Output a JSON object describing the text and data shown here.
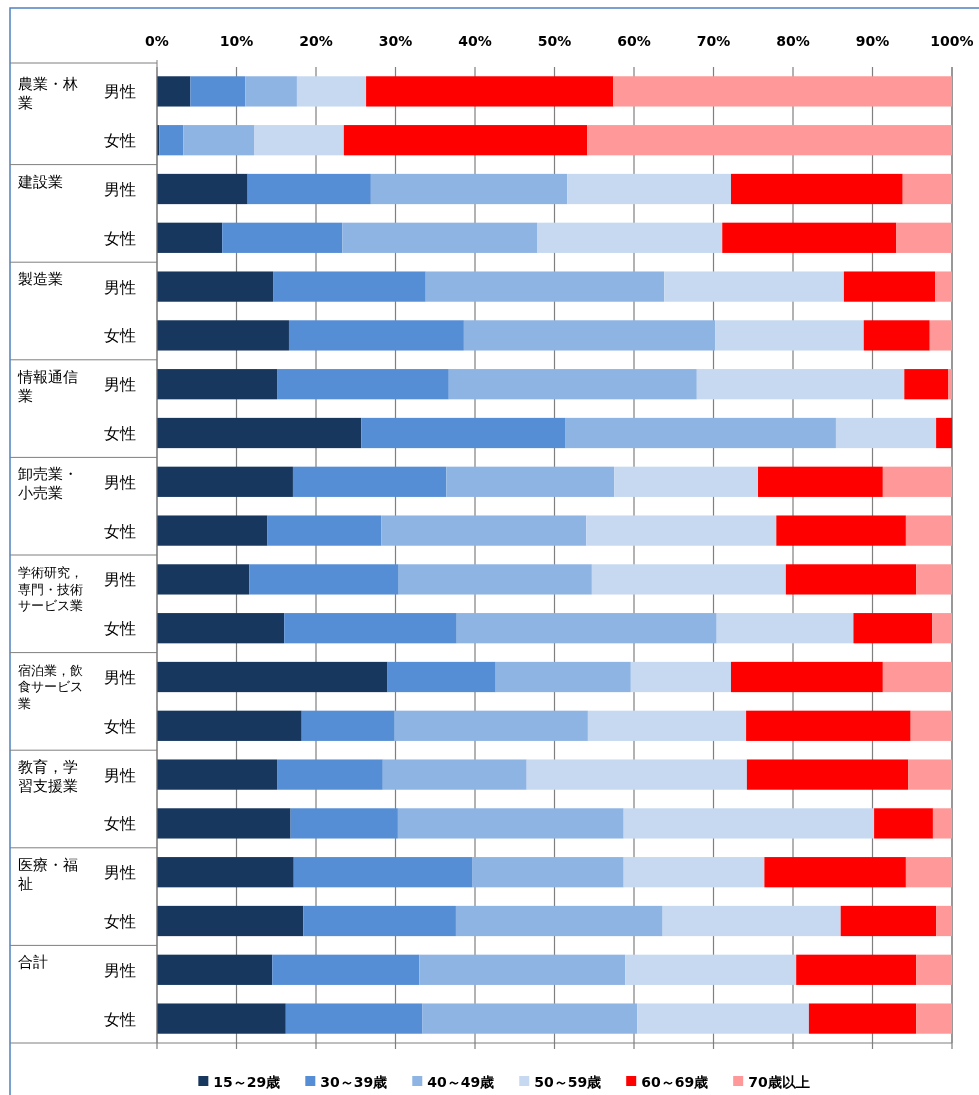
{
  "chart_data": {
    "type": "bar",
    "orientation": "horizontal",
    "stacked": true,
    "grid": "x",
    "legend": "bottom",
    "categories": [
      "男性",
      "女性",
      "男性",
      "女性",
      "男性",
      "女性",
      "男性",
      "女性",
      "男性",
      "女性",
      "男性",
      "女性",
      "男性",
      "女性",
      "男性",
      "女性",
      "男性",
      "女性",
      "男性",
      "女性"
    ],
    "annotations": [
      "農業・林業",
      "建設業",
      "製造業",
      "情報通信業",
      "卸売業・小売業",
      "学術研究，専門・技術サービス業",
      "宿泊業，飲食サービス業",
      "教育，学習支援業",
      "医療・福祉",
      "合計"
    ],
    "xlim": [
      0,
      100
    ],
    "xticks": [
      {
        "value": 0,
        "label": "0%"
      },
      {
        "value": 10,
        "label": "10%"
      },
      {
        "value": 20,
        "label": "20%"
      },
      {
        "value": 30,
        "label": "30%"
      },
      {
        "value": 40,
        "label": "40%"
      },
      {
        "value": 50,
        "label": "50%"
      },
      {
        "value": 60,
        "label": "60%"
      },
      {
        "value": 70,
        "label": "70%"
      },
      {
        "value": 80,
        "label": "80%"
      },
      {
        "value": 90,
        "label": "90%"
      },
      {
        "value": 100,
        "label": "100%"
      }
    ],
    "series": [
      {
        "name": "15～29歳",
        "color": "#17375e",
        "values": [
          4.2,
          0.3,
          11.4,
          8.2,
          14.6,
          16.6,
          15.1,
          25.7,
          17.1,
          13.9,
          11.6,
          16.0,
          29.0,
          18.2,
          15.1,
          16.8,
          17.2,
          18.4,
          14.5,
          16.2
        ]
      },
      {
        "name": "30～39歳",
        "color": "#558ed5",
        "values": [
          6.9,
          3.0,
          15.5,
          15.1,
          19.2,
          22.0,
          21.6,
          25.7,
          19.3,
          14.3,
          18.8,
          21.7,
          13.6,
          11.7,
          13.3,
          13.5,
          22.5,
          19.2,
          18.5,
          17.2
        ]
      },
      {
        "name": "40～49歳",
        "color": "#8eb4e3",
        "values": [
          6.5,
          8.9,
          24.7,
          24.5,
          30.0,
          31.6,
          31.2,
          34.0,
          21.1,
          25.8,
          24.3,
          32.7,
          17.0,
          24.3,
          18.1,
          28.4,
          19.0,
          26.0,
          25.9,
          27.0
        ]
      },
      {
        "name": "50～59歳",
        "color": "#c6d9f1",
        "values": [
          8.7,
          11.3,
          20.6,
          23.3,
          22.6,
          18.7,
          26.1,
          12.6,
          18.1,
          23.9,
          24.4,
          17.2,
          12.6,
          19.9,
          27.7,
          31.5,
          17.7,
          22.4,
          21.5,
          21.6
        ]
      },
      {
        "name": "60～69歳",
        "color": "#ff0000",
        "values": [
          31.1,
          30.6,
          21.6,
          21.9,
          11.5,
          8.3,
          5.5,
          2.0,
          15.7,
          16.3,
          16.4,
          9.9,
          19.1,
          20.7,
          20.3,
          7.4,
          17.8,
          12.0,
          15.1,
          13.5
        ]
      },
      {
        "name": "70歳以上",
        "color": "#ff9999",
        "values": [
          42.6,
          45.9,
          6.2,
          7.0,
          2.1,
          2.8,
          0.5,
          0,
          8.7,
          5.8,
          4.5,
          2.5,
          8.7,
          5.2,
          5.5,
          2.4,
          5.8,
          2.0,
          4.5,
          4.5
        ]
      }
    ]
  }
}
